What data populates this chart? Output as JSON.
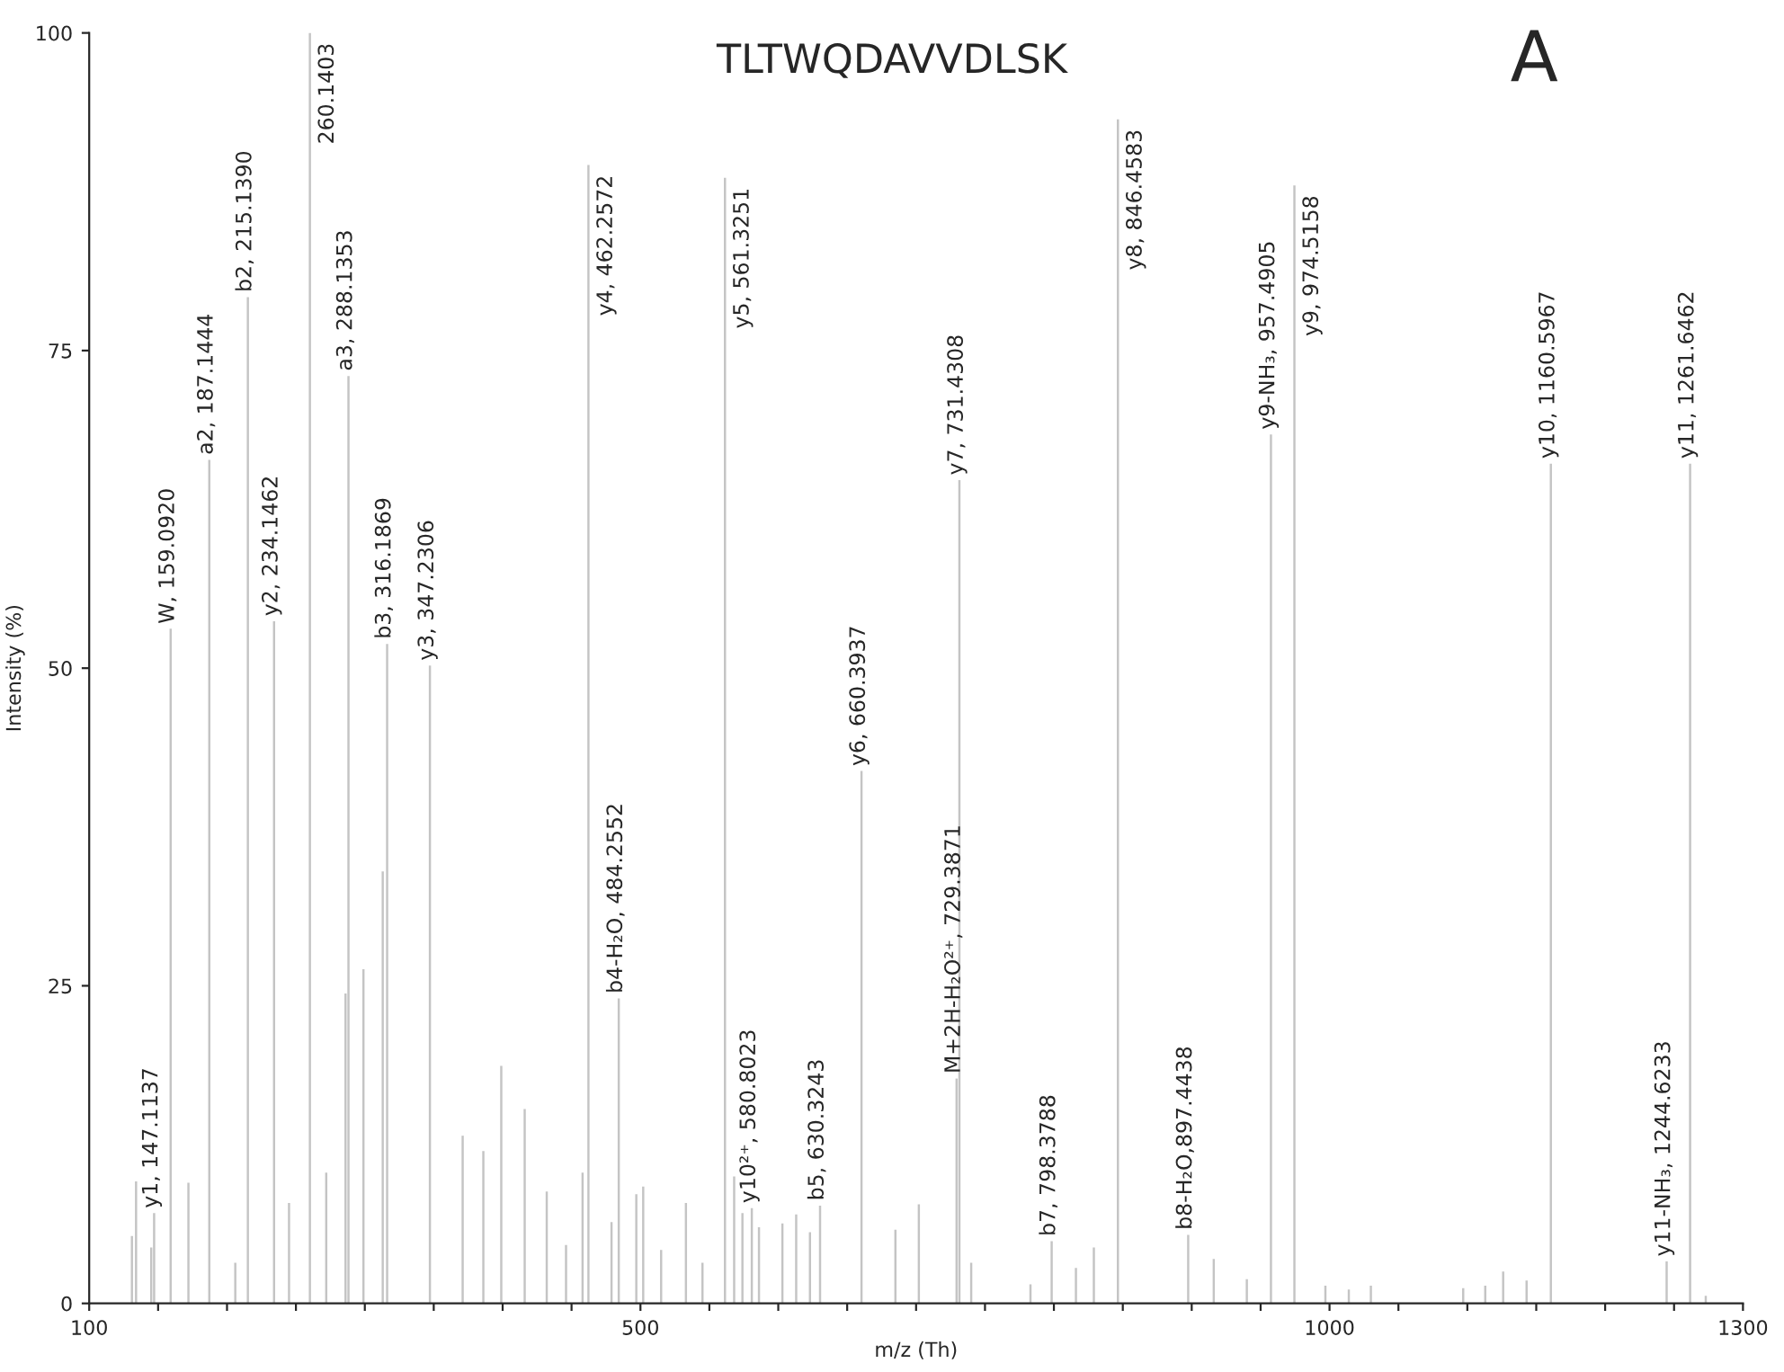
{
  "chart_data": {
    "type": "bar",
    "title": "TLTWQDAVVDLSK",
    "xlabel": "m/z (Th)",
    "ylabel": "Intensity (%)",
    "color": "#c4c4c4",
    "x": [
      131,
      134,
      145,
      147.1137,
      159.092,
      172,
      187.1444,
      206,
      215.139,
      234.1462,
      245,
      260.1403,
      272,
      286,
      288.1353,
      299,
      313,
      316.1869,
      347.2306,
      371,
      386,
      399,
      416,
      432,
      446,
      458,
      462.2572,
      479,
      484.2552,
      497,
      502,
      515,
      533,
      545,
      561.3251,
      568,
      574,
      580.8023,
      586,
      603,
      613,
      623,
      630.3243,
      660.3937,
      685,
      702,
      729.3871,
      731.4308,
      740,
      783,
      798.3788,
      816,
      829,
      846.4583,
      897.4438,
      916,
      940,
      957.4905,
      974.5158,
      997,
      1014,
      1030,
      1097,
      1113,
      1126,
      1143,
      1160.5967,
      1244.6233,
      1261.6462,
      1273
    ],
    "values": [
      5.3,
      9.6,
      4.4,
      7.1,
      53.1,
      9.5,
      66.4,
      3.2,
      79.2,
      53.7,
      7.9,
      100,
      10.3,
      24.4,
      73,
      26.3,
      34,
      51.9,
      50.2,
      13.2,
      12.0,
      18.7,
      15.3,
      8.8,
      4.6,
      10.3,
      89.6,
      6.4,
      24,
      8.6,
      9.2,
      4.2,
      7.9,
      3.2,
      88.6,
      10.0,
      7.1,
      7.5,
      6.0,
      6.3,
      7.0,
      5.6,
      7.7,
      41.9,
      5.8,
      7.8,
      17.7,
      64.8,
      3.2,
      1.5,
      4.9,
      2.8,
      4.4,
      93.2,
      5.4,
      3.5,
      1.9,
      68.4,
      88.0,
      1.4,
      1.1,
      1.4,
      1.2,
      1.4,
      2.5,
      1.8,
      66.1,
      3.3,
      66.1,
      0.6
    ],
    "xlim": [
      100,
      1300
    ],
    "xticks": [
      100,
      {
        "value": 150,
        "label": null
      },
      {
        "value": 200,
        "label": null
      },
      {
        "value": 250,
        "label": null
      },
      {
        "value": 300,
        "label": null
      },
      {
        "value": 350,
        "label": null
      },
      {
        "value": 400,
        "label": null
      },
      {
        "value": 450,
        "label": null
      },
      500,
      {
        "value": 550,
        "label": null
      },
      {
        "value": 600,
        "label": null
      },
      {
        "value": 650,
        "label": null
      },
      {
        "value": 700,
        "label": null
      },
      {
        "value": 750,
        "label": null
      },
      {
        "value": 800,
        "label": null
      },
      {
        "value": 850,
        "label": null
      },
      {
        "value": 900,
        "label": null
      },
      {
        "value": 950,
        "label": null
      },
      1000,
      {
        "value": 1050,
        "label": null
      },
      {
        "value": 1100,
        "label": null
      },
      {
        "value": 1150,
        "label": null
      },
      {
        "value": 1200,
        "label": null
      },
      {
        "value": 1250,
        "label": null
      },
      1300
    ],
    "ylim": [
      0,
      100
    ],
    "yticks": [
      0,
      25,
      50,
      75,
      100
    ],
    "grid": false,
    "legend": false,
    "annotations": [
      "A",
      {
        "text": "y1, 147.1137",
        "x": 147.1137,
        "y": 7.1
      },
      {
        "text": "W, 159.0920",
        "x": 159.092,
        "y": 53.1
      },
      {
        "text": "a2, 187.1444",
        "x": 187.1444,
        "y": 66.4
      },
      {
        "text": "b2, 215.1390",
        "x": 215.139,
        "y": 79.2
      },
      {
        "text": "y2, 234.1462",
        "x": 234.1462,
        "y": 53.7
      },
      {
        "text": "260.1403",
        "x": 260.1403,
        "y": 100
      },
      {
        "text": "a3, 288.1353",
        "x": 288.1353,
        "y": 73
      },
      {
        "text": "b3, 316.1869",
        "x": 316.1869,
        "y": 51.9
      },
      {
        "text": "y3, 347.2306",
        "x": 347.2306,
        "y": 50.2
      },
      {
        "text": "y4, 462.2572",
        "x": 462.2572,
        "y": 89.6
      },
      {
        "text": "b4-H₂O, 484.2552",
        "x": 484.2552,
        "y": 24
      },
      {
        "text": "y5, 561.3251",
        "x": 561.3251,
        "y": 88.6
      },
      {
        "text": "y10²⁺, 580.8023",
        "x": 580.8023,
        "y": 7.5
      },
      {
        "text": "b5, 630.3243",
        "x": 630.3243,
        "y": 7.7
      },
      {
        "text": "y6, 660.3937",
        "x": 660.3937,
        "y": 41.9
      },
      {
        "text": "M+2H-H₂O²⁺, 729.3871",
        "x": 729.3871,
        "y": 17.7
      },
      {
        "text": "y7, 731.4308",
        "x": 731.4308,
        "y": 64.8
      },
      {
        "text": "b7, 798.3788",
        "x": 798.3788,
        "y": 4.9
      },
      {
        "text": "y8, 846.4583",
        "x": 846.4583,
        "y": 93.2
      },
      {
        "text": "b8-H₂O,897.4438",
        "x": 897.4438,
        "y": 5.4
      },
      {
        "text": "y9-NH₃, 957.4905",
        "x": 957.4905,
        "y": 68.4
      },
      {
        "text": "y9, 974.5158",
        "x": 974.5158,
        "y": 88.0
      },
      {
        "text": "y10, 1160.5967",
        "x": 1160.5967,
        "y": 66.1
      },
      {
        "text": "y11-NH₃, 1244.6233",
        "x": 1244.6233,
        "y": 3.3
      },
      {
        "text": "y11, 1261.6462",
        "x": 1261.6462,
        "y": 66.1
      }
    ]
  }
}
